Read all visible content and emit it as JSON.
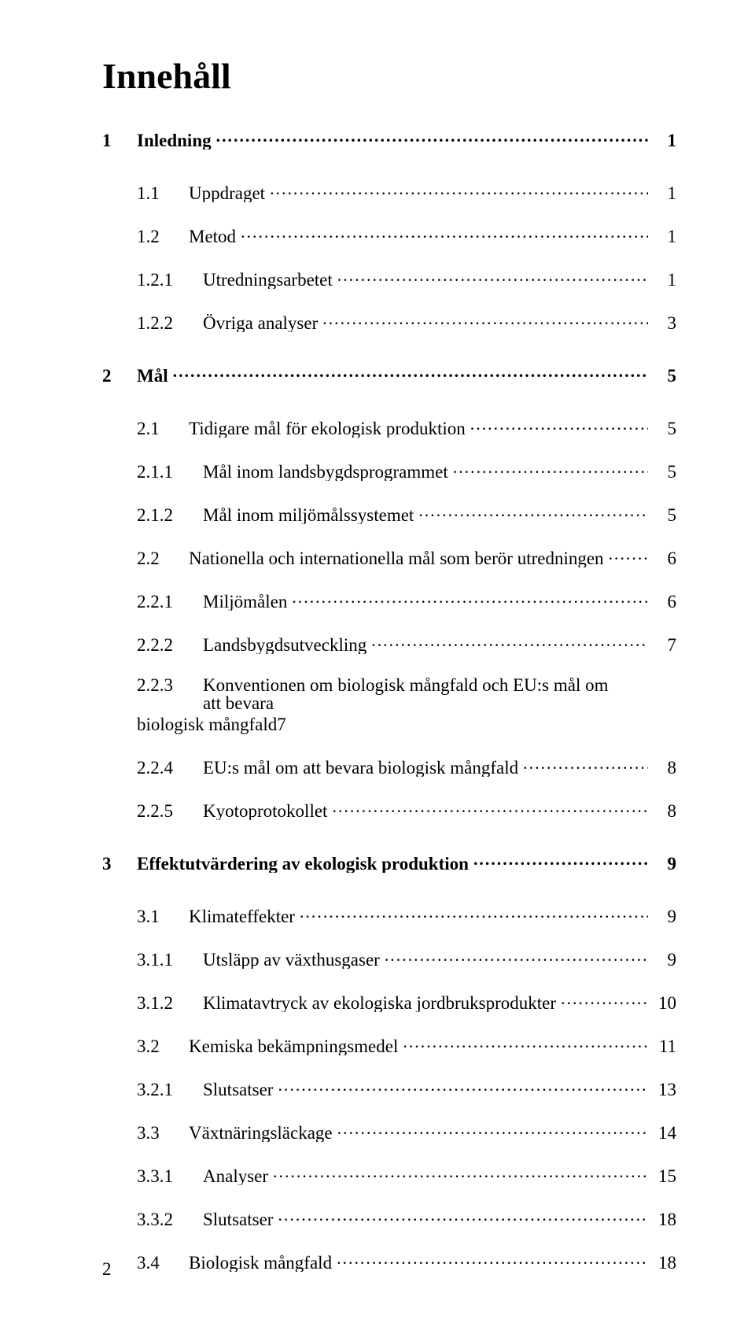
{
  "title": "Innehåll",
  "footer_page_number": "2",
  "toc": [
    {
      "level": 1,
      "num": "1",
      "label": "Inledning",
      "page": "1"
    },
    {
      "level": 2,
      "num": "1.1",
      "label": "Uppdraget",
      "page": "1"
    },
    {
      "level": 2,
      "num": "1.2",
      "label": "Metod",
      "page": "1"
    },
    {
      "level": 3,
      "num": "1.2.1",
      "label": "Utredningsarbetet",
      "page": "1"
    },
    {
      "level": 3,
      "num": "1.2.2",
      "label": "Övriga analyser",
      "page": "3"
    },
    {
      "level": 1,
      "num": "2",
      "label": "Mål",
      "page": "5"
    },
    {
      "level": 2,
      "num": "2.1",
      "label": "Tidigare mål för ekologisk produktion",
      "page": "5"
    },
    {
      "level": 3,
      "num": "2.1.1",
      "label": "Mål inom landsbygdsprogrammet",
      "page": "5"
    },
    {
      "level": 3,
      "num": "2.1.2",
      "label": "Mål inom miljömålssystemet",
      "page": "5"
    },
    {
      "level": 2,
      "num": "2.2",
      "label": "Nationella och internationella mål som berör utredningen",
      "page": "6"
    },
    {
      "level": 3,
      "num": "2.2.1",
      "label": "Miljömålen",
      "page": "6"
    },
    {
      "level": 3,
      "num": "2.2.2",
      "label": "Landsbygdsutveckling",
      "page": "7"
    },
    {
      "level": 3,
      "num": "2.2.3",
      "label": "Konventionen om biologisk mångfald och EU:s mål om att bevara",
      "label2": "biologisk mångfald",
      "page": "7",
      "multiline": true
    },
    {
      "level": 3,
      "num": "2.2.4",
      "label": "EU:s mål om att bevara biologisk mångfald",
      "page": "8"
    },
    {
      "level": 3,
      "num": "2.2.5",
      "label": "Kyotoprotokollet",
      "page": "8"
    },
    {
      "level": 1,
      "num": "3",
      "label": "Effektutvärdering av ekologisk produktion",
      "page": "9"
    },
    {
      "level": 2,
      "num": "3.1",
      "label": "Klimateffekter",
      "page": "9"
    },
    {
      "level": 3,
      "num": "3.1.1",
      "label": "Utsläpp av växthusgaser",
      "page": "9"
    },
    {
      "level": 3,
      "num": "3.1.2",
      "label": "Klimatavtryck av ekologiska jordbruksprodukter",
      "page": "10"
    },
    {
      "level": 2,
      "num": "3.2",
      "label": "Kemiska bekämpningsmedel",
      "page": "11"
    },
    {
      "level": 3,
      "num": "3.2.1",
      "label": "Slutsatser",
      "page": "13"
    },
    {
      "level": 2,
      "num": "3.3",
      "label": "Växtnäringsläckage",
      "page": "14"
    },
    {
      "level": 3,
      "num": "3.3.1",
      "label": "Analyser",
      "page": "15"
    },
    {
      "level": 3,
      "num": "3.3.2",
      "label": "Slutsatser",
      "page": "18"
    },
    {
      "level": 2,
      "num": "3.4",
      "label": "Biologisk mångfald",
      "page": "18"
    }
  ]
}
